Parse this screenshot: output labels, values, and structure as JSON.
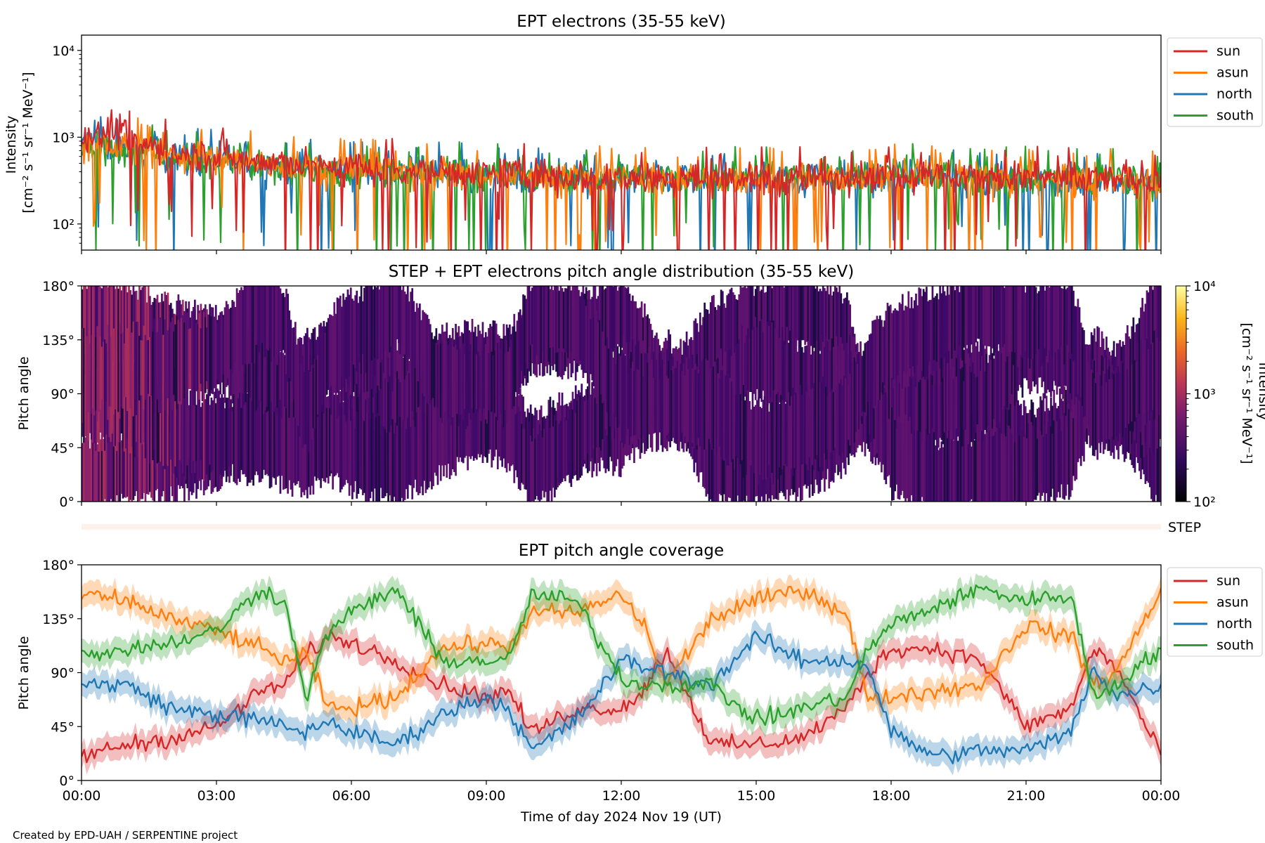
{
  "credit": "Created by EPD-UAH / SERPENTINE project",
  "colors": {
    "sun": "#d62728",
    "asun": "#ff7f0e",
    "north": "#1f77b4",
    "south": "#2ca02c"
  },
  "chart_data": [
    {
      "id": "intensity",
      "type": "line",
      "title": "EPT electrons (35-55 keV)",
      "ylabel_line1": "Intensity",
      "ylabel_line2": "[cm⁻² s⁻¹ sr⁻¹ MeV⁻¹]",
      "yscale": "log",
      "ylim": [
        50,
        15000
      ],
      "yticks": [
        {
          "value": 100,
          "label": "10²"
        },
        {
          "value": 1000,
          "label": "10³"
        },
        {
          "value": 10000,
          "label": "10⁴"
        }
      ],
      "xlim_hours": [
        0,
        24
      ],
      "legend": {
        "placement": "outside-right",
        "entries": [
          "sun",
          "asun",
          "north",
          "south"
        ]
      },
      "series": [
        {
          "name": "sun",
          "color": "#d62728",
          "x_hours": [
            0,
            0.5,
            1,
            1.5,
            2,
            3,
            4,
            5,
            6,
            7,
            8,
            9,
            10,
            11,
            12,
            13,
            14,
            15,
            16,
            17,
            18,
            19,
            20,
            21,
            22,
            23,
            24
          ],
          "values": [
            1000,
            1100,
            950,
            800,
            700,
            600,
            520,
            480,
            450,
            430,
            400,
            380,
            370,
            360,
            350,
            340,
            330,
            330,
            340,
            360,
            380,
            360,
            350,
            340,
            330,
            330,
            320
          ]
        },
        {
          "name": "asun",
          "color": "#ff7f0e",
          "x_hours": [
            0,
            0.5,
            1,
            1.5,
            2,
            3,
            4,
            5,
            6,
            7,
            8,
            9,
            10,
            11,
            12,
            13,
            14,
            15,
            16,
            17,
            18,
            19,
            20,
            21,
            22,
            23,
            24
          ],
          "values": [
            900,
            800,
            750,
            700,
            620,
            550,
            500,
            460,
            430,
            410,
            390,
            370,
            360,
            350,
            340,
            330,
            320,
            320,
            330,
            350,
            370,
            350,
            340,
            330,
            320,
            320,
            310
          ]
        },
        {
          "name": "north",
          "color": "#1f77b4",
          "x_hours": [
            0,
            0.5,
            1,
            1.5,
            2,
            3,
            4,
            5,
            6,
            7,
            8,
            9,
            10,
            11,
            12,
            13,
            14,
            15,
            16,
            17,
            18,
            19,
            20,
            21,
            22,
            23,
            24
          ],
          "values": [
            850,
            800,
            720,
            650,
            600,
            530,
            480,
            450,
            420,
            400,
            380,
            360,
            350,
            345,
            340,
            330,
            320,
            320,
            330,
            345,
            360,
            345,
            335,
            325,
            320,
            315,
            310
          ]
        },
        {
          "name": "south",
          "color": "#2ca02c",
          "x_hours": [
            0,
            0.5,
            1,
            1.5,
            2,
            3,
            4,
            5,
            6,
            7,
            8,
            9,
            10,
            11,
            12,
            13,
            14,
            15,
            16,
            17,
            18,
            19,
            20,
            21,
            22,
            23,
            24
          ],
          "values": [
            800,
            760,
            700,
            640,
            590,
            520,
            470,
            440,
            420,
            400,
            385,
            370,
            360,
            350,
            345,
            340,
            335,
            335,
            345,
            360,
            375,
            360,
            350,
            340,
            335,
            330,
            325
          ]
        }
      ]
    },
    {
      "id": "pad",
      "type": "heatmap",
      "title": "STEP + EPT electrons pitch angle distribution (35-55 keV)",
      "ylabel": "Pitch angle",
      "ylim": [
        0,
        180
      ],
      "yticks": [
        "0°",
        "45°",
        "90°",
        "135°",
        "180°"
      ],
      "xlim_hours": [
        0,
        24
      ],
      "colormap": "inferno",
      "colorbar": {
        "label_line1": "Intensity",
        "label_line2": "[cm⁻² s⁻¹ sr⁻¹ MeV⁻¹]",
        "scale": "log",
        "range": [
          100,
          10000
        ],
        "ticks": [
          {
            "value": 100,
            "label": "10²"
          },
          {
            "value": 1000,
            "label": "10³"
          },
          {
            "value": 10000,
            "label": "10⁴"
          }
        ]
      }
    },
    {
      "id": "step",
      "type": "heatmap",
      "label": "STEP",
      "xlim_hours": [
        0,
        24
      ]
    },
    {
      "id": "coverage",
      "type": "line",
      "title": "EPT pitch angle coverage",
      "ylabel": "Pitch angle",
      "ylim": [
        0,
        180
      ],
      "yticks": [
        "0°",
        "45°",
        "90°",
        "135°",
        "180°"
      ],
      "xlabel": "Time of day 2024 Nov 19 (UT)",
      "xlim_hours": [
        0,
        24
      ],
      "xticks": [
        "00:00",
        "03:00",
        "06:00",
        "09:00",
        "12:00",
        "15:00",
        "18:00",
        "21:00",
        "00:00"
      ],
      "legend": {
        "placement": "outside-right",
        "entries": [
          "sun",
          "asun",
          "north",
          "south"
        ]
      },
      "series": [
        {
          "name": "sun",
          "color": "#d62728",
          "x_hours": [
            0,
            1,
            2,
            3,
            4,
            4.5,
            5,
            5.5,
            6,
            7,
            8,
            9,
            9.5,
            10,
            11,
            12,
            12.5,
            13,
            14,
            15,
            16,
            17,
            17.5,
            18,
            19,
            20,
            21,
            22,
            22.5,
            23,
            24
          ],
          "values": [
            20,
            30,
            35,
            45,
            75,
            80,
            105,
            120,
            115,
            100,
            80,
            70,
            75,
            40,
            60,
            60,
            75,
            110,
            30,
            30,
            35,
            60,
            90,
            110,
            110,
            100,
            45,
            60,
            110,
            95,
            20
          ]
        },
        {
          "name": "asun",
          "color": "#ff7f0e",
          "x_hours": [
            0,
            1,
            2,
            3,
            4,
            4.5,
            5,
            5.5,
            6,
            7,
            8,
            9,
            9.5,
            10,
            11,
            12,
            12.5,
            13,
            14,
            15,
            16,
            17,
            17.5,
            18,
            19,
            20,
            21,
            22,
            22.5,
            23,
            24
          ],
          "values": [
            155,
            150,
            135,
            125,
            110,
            100,
            105,
            60,
            60,
            70,
            110,
            115,
            110,
            140,
            140,
            155,
            130,
            80,
            135,
            150,
            160,
            140,
            65,
            70,
            75,
            80,
            130,
            120,
            80,
            90,
            160
          ]
        },
        {
          "name": "north",
          "color": "#1f77b4",
          "x_hours": [
            0,
            1,
            2,
            3,
            4,
            4.5,
            5,
            5.5,
            6,
            7,
            8,
            9,
            9.5,
            10,
            11,
            12,
            12.5,
            13,
            14,
            15,
            16,
            17,
            17.5,
            18,
            19,
            20,
            21,
            22,
            22.5,
            23,
            24
          ],
          "values": [
            80,
            80,
            60,
            55,
            50,
            45,
            40,
            50,
            40,
            30,
            55,
            70,
            60,
            25,
            50,
            100,
            95,
            90,
            80,
            120,
            100,
            100,
            95,
            40,
            20,
            25,
            25,
            40,
            95,
            70,
            80
          ]
        },
        {
          "name": "south",
          "color": "#2ca02c",
          "x_hours": [
            0,
            1,
            2,
            3,
            4,
            4.5,
            5,
            5.5,
            6,
            7,
            8,
            9,
            9.5,
            10,
            11,
            12,
            12.5,
            13,
            14,
            15,
            16,
            17,
            17.5,
            18,
            19,
            20,
            21,
            22,
            22.5,
            23,
            24
          ],
          "values": [
            105,
            110,
            115,
            125,
            160,
            150,
            70,
            125,
            140,
            160,
            100,
            100,
            100,
            155,
            150,
            85,
            80,
            80,
            80,
            50,
            60,
            70,
            110,
            130,
            145,
            160,
            150,
            155,
            70,
            80,
            110
          ]
        }
      ]
    }
  ]
}
